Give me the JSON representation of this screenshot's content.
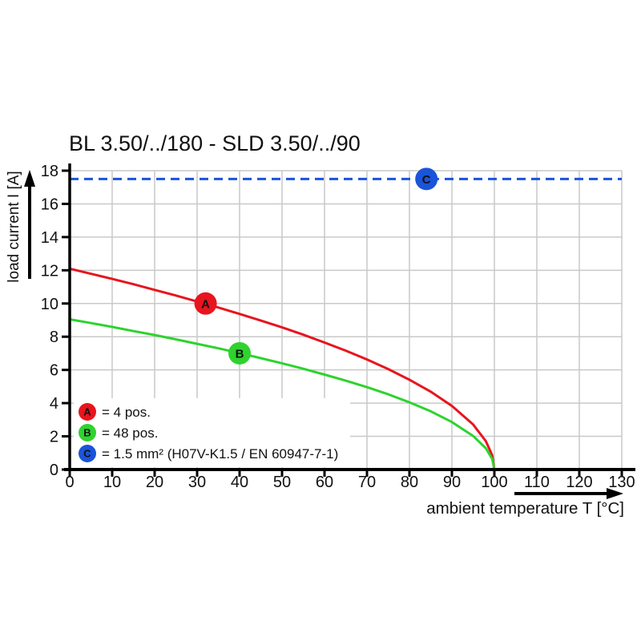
{
  "page": {
    "background": "#ffffff"
  },
  "header": {
    "title": "BL 3.50/../180 - SLD 3.50/../90"
  },
  "chart_data": {
    "type": "line",
    "title": "BL 3.50/../180 - SLD 3.50/../90",
    "xlabel": "ambient temperature T [°C]",
    "ylabel": "load current I [A]",
    "xlim": [
      0,
      130
    ],
    "ylim": [
      0,
      18
    ],
    "x_ticks": [
      0,
      10,
      20,
      30,
      40,
      50,
      60,
      70,
      80,
      90,
      100,
      110,
      120,
      130
    ],
    "y_ticks": [
      0,
      2,
      4,
      6,
      8,
      10,
      12,
      14,
      16,
      18
    ],
    "grid": true,
    "grid_color": "#c9c9c9",
    "axis_color": "#000000",
    "legend_position": "lower-left-inside",
    "series": [
      {
        "name": "A",
        "legend_label": "= 4 pos.",
        "color": "#e8141e",
        "line_style": "solid",
        "marker": {
          "letter": "A",
          "x": 32,
          "y": 10.0
        },
        "points": [
          [
            0,
            12.1
          ],
          [
            5,
            11.79
          ],
          [
            10,
            11.48
          ],
          [
            15,
            11.16
          ],
          [
            20,
            10.82
          ],
          [
            25,
            10.48
          ],
          [
            30,
            10.12
          ],
          [
            35,
            9.76
          ],
          [
            40,
            9.37
          ],
          [
            45,
            8.97
          ],
          [
            50,
            8.56
          ],
          [
            55,
            8.12
          ],
          [
            60,
            7.65
          ],
          [
            65,
            7.16
          ],
          [
            70,
            6.63
          ],
          [
            75,
            6.05
          ],
          [
            80,
            5.41
          ],
          [
            85,
            4.69
          ],
          [
            90,
            3.83
          ],
          [
            95,
            2.71
          ],
          [
            98,
            1.71
          ],
          [
            99.5,
            0.86
          ],
          [
            100,
            0
          ]
        ]
      },
      {
        "name": "B",
        "legend_label": "= 48 pos.",
        "color": "#2ed32e",
        "line_style": "solid",
        "marker": {
          "letter": "B",
          "x": 40,
          "y": 7.0
        },
        "points": [
          [
            0,
            9.05
          ],
          [
            5,
            8.82
          ],
          [
            10,
            8.59
          ],
          [
            15,
            8.34
          ],
          [
            20,
            8.1
          ],
          [
            25,
            7.84
          ],
          [
            30,
            7.57
          ],
          [
            35,
            7.3
          ],
          [
            40,
            7.01
          ],
          [
            45,
            6.71
          ],
          [
            50,
            6.4
          ],
          [
            55,
            6.07
          ],
          [
            60,
            5.72
          ],
          [
            65,
            5.35
          ],
          [
            70,
            4.96
          ],
          [
            75,
            4.53
          ],
          [
            80,
            4.05
          ],
          [
            85,
            3.51
          ],
          [
            90,
            2.86
          ],
          [
            95,
            2.02
          ],
          [
            98,
            1.28
          ],
          [
            99.5,
            0.64
          ],
          [
            100,
            0
          ]
        ]
      },
      {
        "name": "C",
        "legend_label": "= 1.5 mm² (H07V-K1.5 / EN 60947-7-1)",
        "color": "#1a54d9",
        "line_style": "dashed",
        "marker": {
          "letter": "C",
          "x": 84,
          "y": 17.5
        },
        "points": [
          [
            0,
            17.5
          ],
          [
            130,
            17.5
          ]
        ]
      }
    ]
  }
}
